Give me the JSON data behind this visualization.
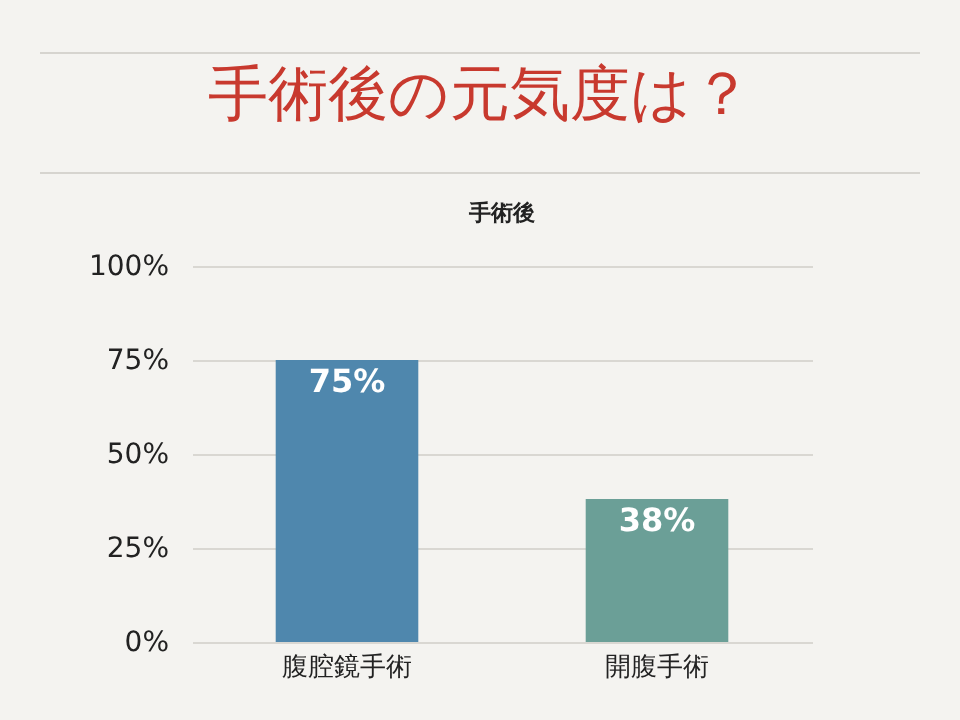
{
  "chart_data": {
    "type": "bar",
    "title": "手術後の元気度は？",
    "subtitle": "手術後",
    "categories": [
      "腹腔鏡手術",
      "開腹手術"
    ],
    "values": [
      75,
      38
    ],
    "colors": [
      "#4f87ad",
      "#6b9f97"
    ],
    "value_labels": [
      "75%",
      "38%"
    ],
    "ylim": [
      0,
      100
    ],
    "yticks": [
      {
        "value": 0,
        "label": "0%"
      },
      {
        "value": 25,
        "label": "25%"
      },
      {
        "value": 50,
        "label": "50%"
      },
      {
        "value": 75,
        "label": "75%"
      },
      {
        "value": 100,
        "label": "100%"
      }
    ],
    "grid": "y"
  }
}
